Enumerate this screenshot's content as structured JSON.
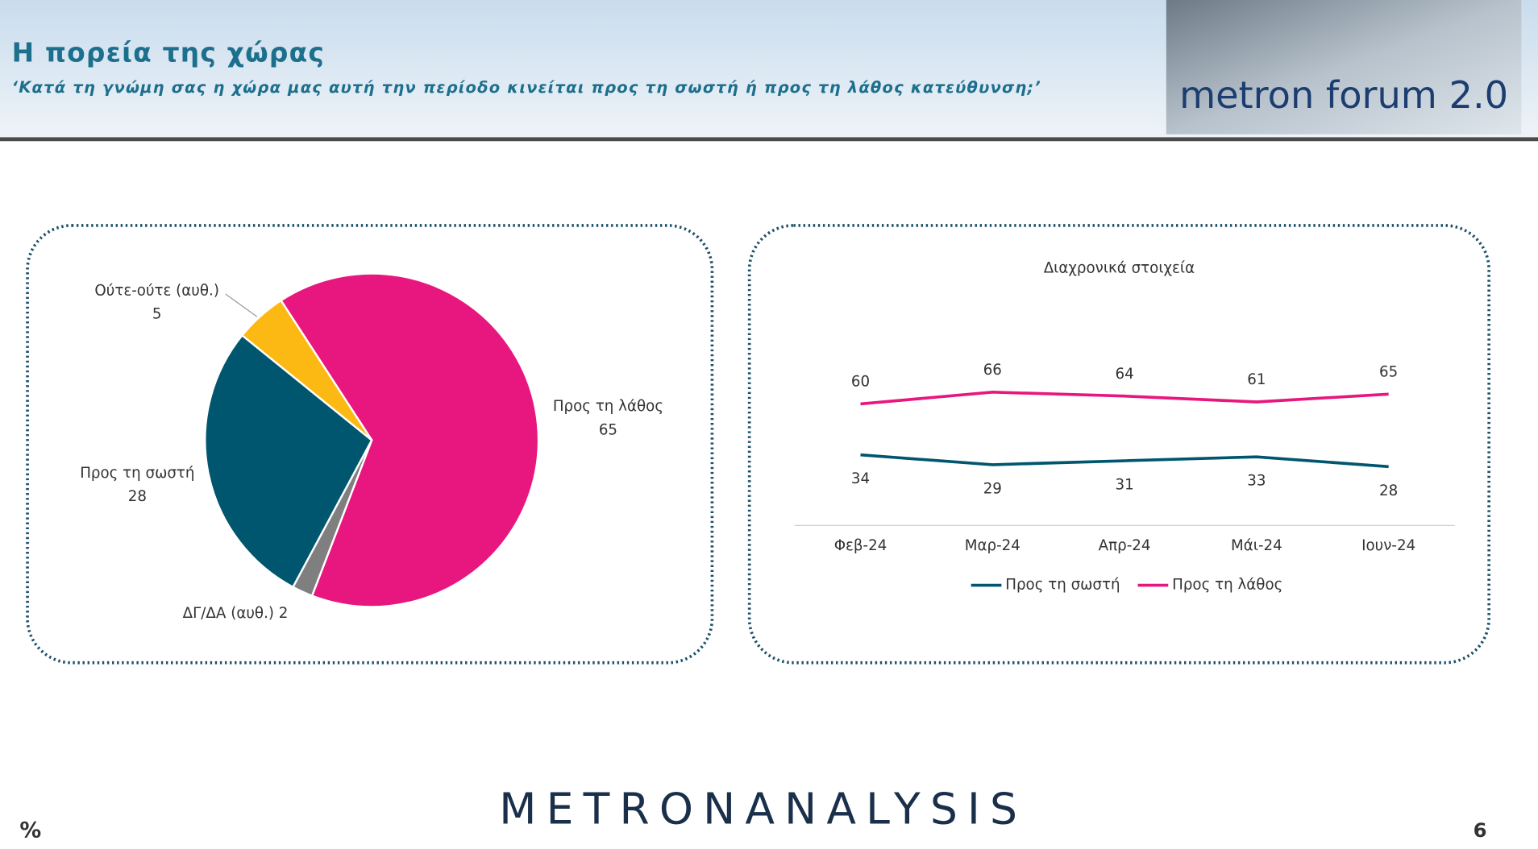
{
  "header": {
    "title": "Η πορεία της χώρας",
    "subtitle": "‘Κατά τη γνώμη σας η χώρα μας αυτή την περίοδο κινείται προς τη σωστή ή προς τη λάθος κατεύθυνση;’",
    "logo": "metron forum 2.0"
  },
  "footer": {
    "brand": "METRONANALYSIS",
    "unit": "%",
    "page": "6"
  },
  "chart_data": [
    {
      "type": "pie",
      "categories": [
        "Προς τη λάθος",
        "ΔΓ/ΔΑ (αυθ.)",
        "Προς τη σωστή",
        "Ούτε-ούτε (αυθ.)"
      ],
      "values": [
        65,
        2,
        28,
        5
      ],
      "colors": [
        "#e8177f",
        "#7f7f7f",
        "#00566e",
        "#fdb913"
      ]
    },
    {
      "type": "line",
      "title": "Διαχρονικά στοιχεία",
      "categories": [
        "Φεβ-24",
        "Μαρ-24",
        "Απρ-24",
        "Μάι-24",
        "Ιουν-24"
      ],
      "series": [
        {
          "name": "Προς τη σωστή",
          "color": "#00566e",
          "values": [
            34,
            29,
            31,
            33,
            28
          ]
        },
        {
          "name": "Προς τη λάθος",
          "color": "#e8177f",
          "values": [
            60,
            66,
            64,
            61,
            65
          ]
        }
      ],
      "ylim": [
        0,
        100
      ],
      "legend": "bottom"
    }
  ]
}
